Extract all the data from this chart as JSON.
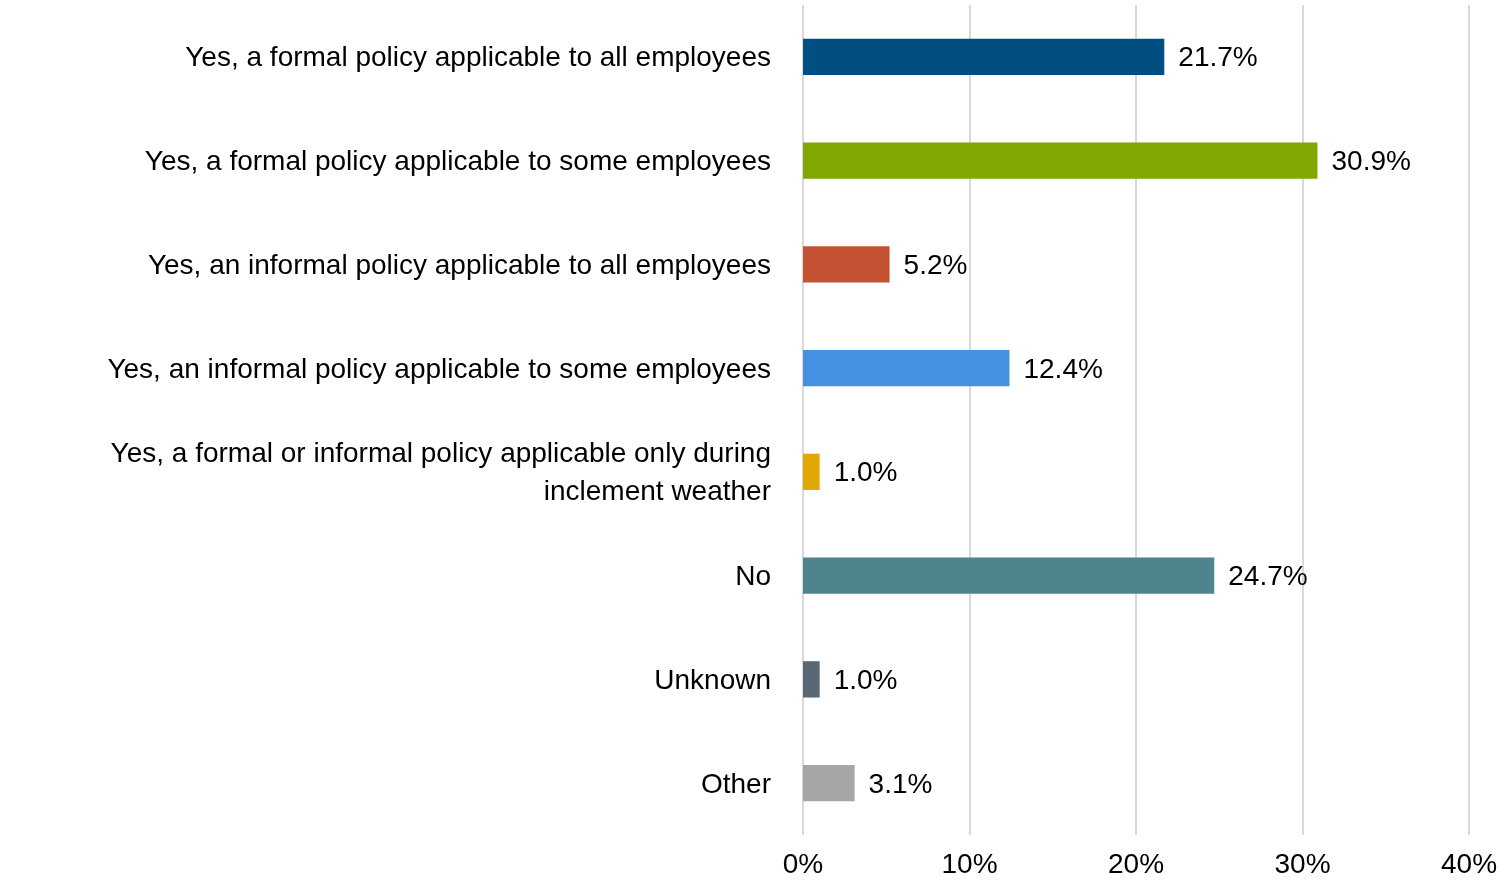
{
  "chart_data": {
    "type": "bar",
    "orientation": "horizontal",
    "categories": [
      "Yes, a formal policy applicable to all employees",
      "Yes, a formal policy applicable to some employees",
      "Yes, an informal policy applicable to all employees",
      "Yes, an informal policy applicable to some employees",
      "Yes, a formal or informal policy applicable only during\ninclement weather",
      "No",
      "Unknown",
      "Other"
    ],
    "values": [
      21.7,
      30.9,
      5.2,
      12.4,
      1.0,
      24.7,
      1.0,
      3.1
    ],
    "colors": [
      "#004f80",
      "#80a800",
      "#c45131",
      "#4391e0",
      "#e0a800",
      "#4f848c",
      "#5a6673",
      "#a6a6a6"
    ],
    "value_labels": [
      "21.7%",
      "30.9%",
      "5.2%",
      "12.4%",
      "1.0%",
      "24.7%",
      "1.0%",
      "3.1%"
    ],
    "xlim": [
      0,
      40
    ],
    "xticks": [
      {
        "value": 0,
        "label": "0%"
      },
      {
        "value": 10,
        "label": "10%"
      },
      {
        "value": 20,
        "label": "20%"
      },
      {
        "value": 30,
        "label": "30%"
      },
      {
        "value": 40,
        "label": "40%"
      }
    ],
    "grid": "x"
  }
}
